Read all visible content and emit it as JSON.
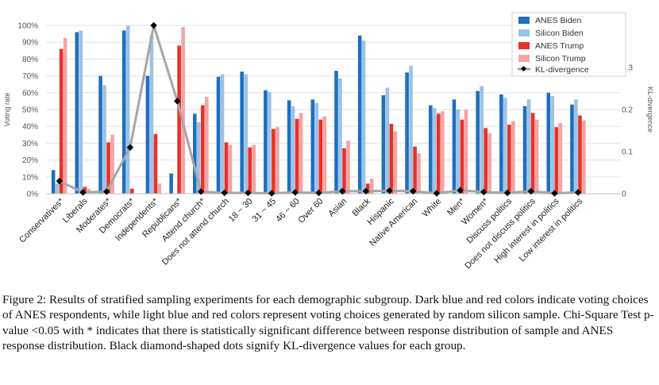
{
  "caption": "Figure 2: Results of stratified sampling experiments for each demographic subgroup. Dark blue and red colors indicate voting choices of ANES respondents, while light blue and red colors represent voting choices generated by random silicon sample. Chi-Square Test p-value <0.05 with * indicates that there is statistically significant difference between response distribution of sample and ANES response distribution. Black diamond-shaped dots signify KL-divergence values for each group.",
  "colors": {
    "anes_biden": "#1f6fbf",
    "silicon_biden": "#9cc3e6",
    "anes_trump": "#e8302a",
    "silicon_trump": "#f5a3a3",
    "kl": "#a6a6a6",
    "kl_marker": "#000000"
  },
  "chart_data": {
    "type": "bar",
    "ylabel": "Voting rate",
    "y2label": "KL-divergence",
    "ylim": [
      0,
      100
    ],
    "y2lim": [
      0,
      0.4
    ],
    "yticks": [
      "0%",
      "10%",
      "20%",
      "30%",
      "40%",
      "50%",
      "60%",
      "70%",
      "80%",
      "90%",
      "100%"
    ],
    "y2ticks": [
      "0",
      "0.1",
      "0.2",
      "0.3"
    ],
    "legend_position": "top-right",
    "categories": [
      "Conservatives*",
      "Liberals",
      "Moderates*",
      "Democrats*",
      "Independents*",
      "Republicans*",
      "Attend church*",
      "Does not attend church",
      "18 ~ 30",
      "31 ~ 45",
      "46 ~ 60",
      "Over 60",
      "Asian",
      "Black",
      "Hispanic",
      "Native American",
      "White",
      "Men*",
      "Women*",
      "Discuss politics",
      "Does not discuss politics",
      "High interest in politics",
      "Low interest in politics"
    ],
    "series": [
      {
        "name": "ANES Biden",
        "values": [
          14,
          96,
          70,
          97,
          70,
          12,
          47.5,
          69.5,
          72.5,
          61.5,
          55.5,
          56,
          73,
          94,
          58.5,
          72,
          52.5,
          56,
          61,
          59,
          52,
          60,
          53
        ]
      },
      {
        "name": "Silicon Biden",
        "values": [
          6,
          97,
          64.5,
          100,
          94,
          0,
          42.5,
          71,
          71,
          60.5,
          52,
          54,
          68.5,
          91,
          63,
          76,
          51,
          50,
          64,
          57,
          56,
          58,
          56
        ]
      },
      {
        "name": "ANES Trump",
        "values": [
          86,
          4,
          30.5,
          3,
          35.5,
          88,
          52.5,
          30.5,
          27.5,
          38.5,
          44.5,
          44,
          27,
          6,
          41.5,
          28,
          47.5,
          44,
          39,
          41,
          48,
          39.5,
          46.5
        ]
      },
      {
        "name": "Silicon Trump",
        "values": [
          92.5,
          3,
          35,
          0,
          6,
          99,
          57.5,
          29,
          29,
          39.5,
          48,
          46,
          31.5,
          9,
          37,
          24,
          49,
          50,
          36,
          43,
          44,
          42,
          43.5
        ]
      }
    ],
    "line": {
      "name": "KL-divergence",
      "axis": "right",
      "values": [
        0.03,
        0.003,
        0.005,
        0.11,
        0.4,
        0.22,
        0.005,
        0.002,
        0.002,
        0.001,
        0.003,
        0.002,
        0.006,
        0.006,
        0.007,
        0.006,
        0.001,
        0.008,
        0.004,
        0.002,
        0.006,
        0.001,
        0.003
      ]
    }
  }
}
